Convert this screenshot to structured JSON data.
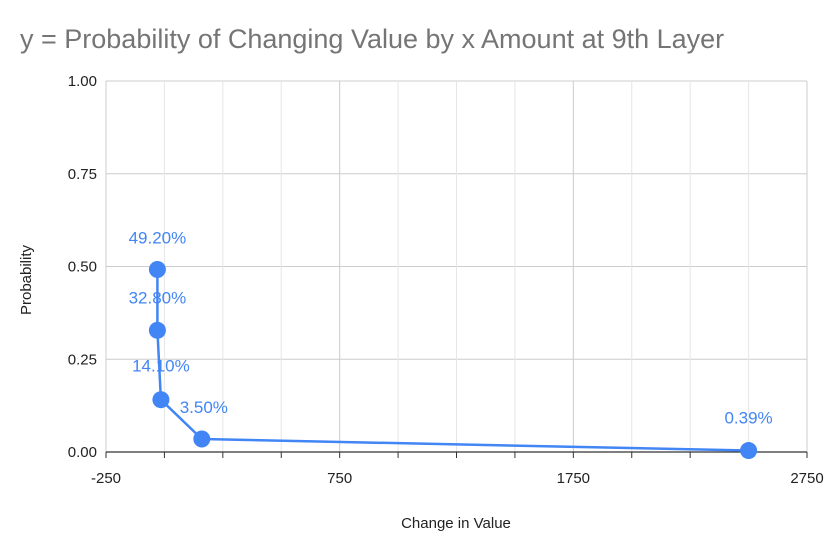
{
  "chart_data": {
    "type": "line",
    "title": "y = Probability of Changing Value by x Amount at 9th Layer",
    "xlabel": "Change in Value",
    "ylabel": "Probability",
    "xlim": [
      -250,
      2750
    ],
    "ylim": [
      0,
      1
    ],
    "x_ticks": [
      "-250",
      "750",
      "1750",
      "2750"
    ],
    "y_ticks": [
      "0.00",
      "0.25",
      "0.50",
      "0.75",
      "1.00"
    ],
    "grid": true,
    "legend": "none",
    "series": [
      {
        "color": "#4285f4",
        "points": [
          {
            "x": -30,
            "y": 0.492,
            "label": "49.20%"
          },
          {
            "x": -30,
            "y": 0.328,
            "label": "32.80%"
          },
          {
            "x": -15,
            "y": 0.141,
            "label": "14.10%"
          },
          {
            "x": 160,
            "y": 0.035,
            "label": "3.50%"
          },
          {
            "x": 2500,
            "y": 0.0039,
            "label": "0.39%"
          }
        ]
      }
    ]
  }
}
